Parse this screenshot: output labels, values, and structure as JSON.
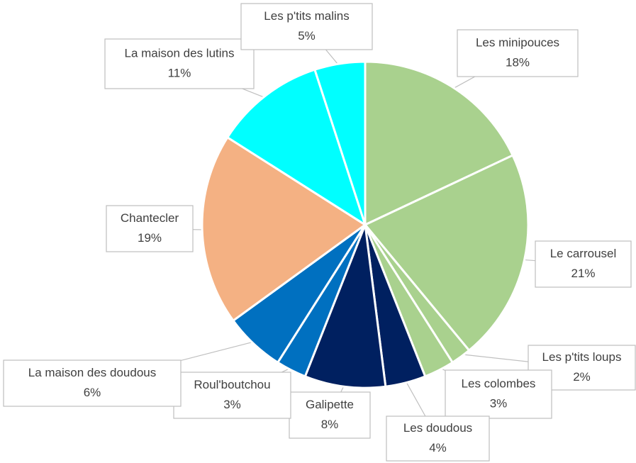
{
  "chart_data": {
    "type": "pie",
    "categories": [
      "Les minipouces",
      "Le carrousel",
      "Les p'tits loups",
      "Les colombes",
      "Les doudous",
      "Galipette",
      "Roul'boutchou",
      "La maison des doudous",
      "Chantecler",
      "La maison des lutins",
      "Les p'tits malins"
    ],
    "values": [
      18,
      21,
      2,
      3,
      4,
      8,
      3,
      6,
      19,
      11,
      5
    ],
    "value_labels": [
      "18%",
      "21%",
      "2%",
      "3%",
      "4%",
      "8%",
      "3%",
      "6%",
      "19%",
      "11%",
      "5%"
    ],
    "colors": [
      "#a9d18e",
      "#a9d18e",
      "#a9d18e",
      "#a9d18e",
      "#002060",
      "#002060",
      "#0070c0",
      "#0070c0",
      "#f4b183",
      "#00ffff",
      "#00ffff"
    ]
  }
}
